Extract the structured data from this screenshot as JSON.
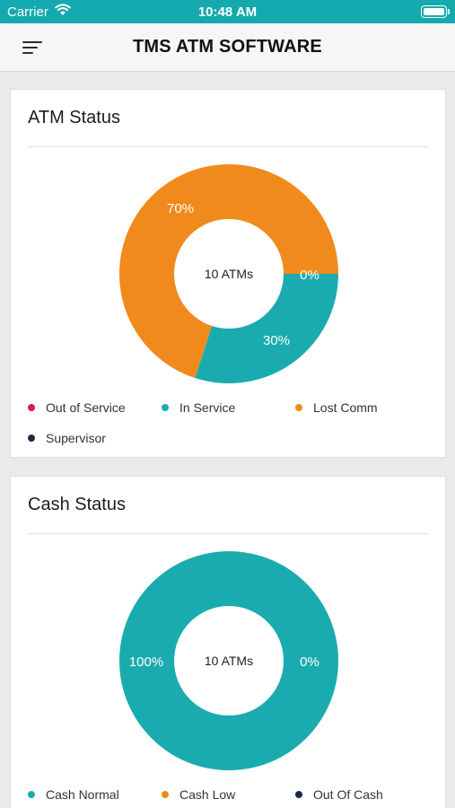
{
  "status_bar": {
    "carrier": "Carrier",
    "time": "10:48 AM"
  },
  "nav": {
    "title": "TMS ATM SOFTWARE",
    "menu_icon": "hamburger-icon"
  },
  "colors": {
    "teal": "#1aabb0",
    "orange": "#f08a1d",
    "red": "#d81b4a",
    "navy": "#1b2a4a"
  },
  "atm_status": {
    "title": "ATM Status",
    "center_label": "10 ATMs",
    "legend": [
      {
        "label": "Out of Service",
        "color": "#d81b4a"
      },
      {
        "label": "In Service",
        "color": "#1aabb0"
      },
      {
        "label": "Lost Comm",
        "color": "#f08a1d"
      },
      {
        "label": "Supervisor",
        "color": "#1b2a4a"
      }
    ]
  },
  "cash_status": {
    "title": "Cash Status",
    "center_label": "10 ATMs",
    "legend": [
      {
        "label": "Cash Normal",
        "color": "#1aabb0"
      },
      {
        "label": "Cash Low",
        "color": "#f08a1d"
      },
      {
        "label": "Out Of Cash",
        "color": "#1b2a4a"
      }
    ]
  },
  "chart_data": [
    {
      "type": "pie",
      "title": "ATM Status",
      "categories": [
        "Out of Service",
        "In Service",
        "Lost Comm",
        "Supervisor"
      ],
      "values": [
        0,
        30,
        70,
        0
      ],
      "data_labels": [
        "0%",
        "30%",
        "70%",
        "0%"
      ],
      "colors": [
        "#d81b4a",
        "#1aabb0",
        "#f08a1d",
        "#1b2a4a"
      ],
      "legend_position": "bottom"
    },
    {
      "type": "pie",
      "title": "Cash Status",
      "categories": [
        "Cash Normal",
        "Cash Low",
        "Out Of Cash"
      ],
      "values": [
        100,
        0,
        0
      ],
      "data_labels": [
        "100%",
        "0%",
        "0%"
      ],
      "colors": [
        "#1aabb0",
        "#f08a1d",
        "#1b2a4a"
      ],
      "legend_position": "bottom"
    }
  ]
}
